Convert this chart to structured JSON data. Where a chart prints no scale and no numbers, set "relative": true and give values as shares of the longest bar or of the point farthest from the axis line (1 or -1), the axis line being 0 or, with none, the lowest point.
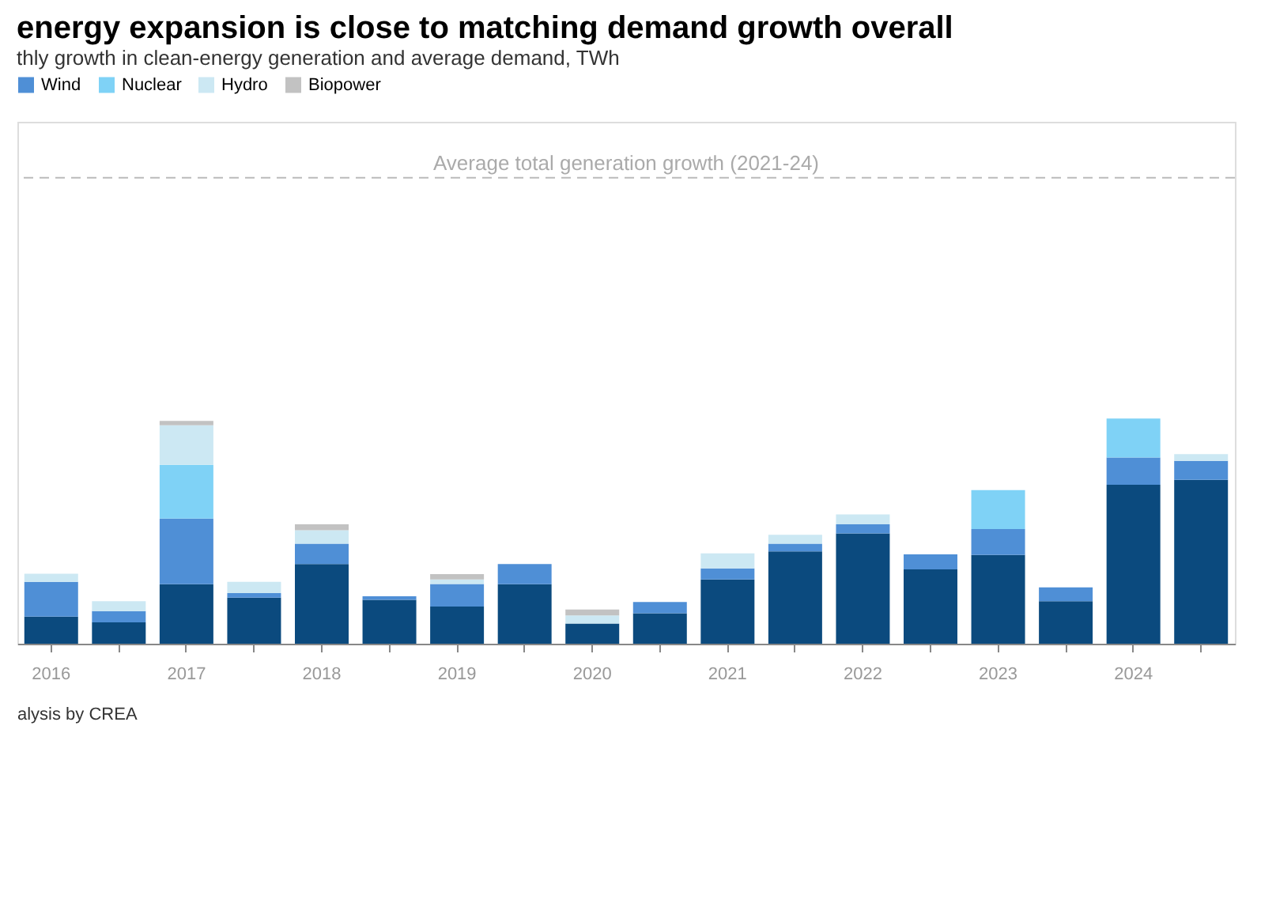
{
  "chart_data": {
    "type": "bar",
    "stacked": true,
    "relative": true,
    "title": "energy expansion is close to matching demand growth overall",
    "subtitle": "thly growth in clean-energy generation and average demand, TWh",
    "categories": [
      "2016",
      null,
      "2017",
      null,
      "2018",
      null,
      "2019",
      null,
      "2020",
      null,
      "2021",
      null,
      "2022",
      null,
      "2023",
      null,
      "2024",
      null
    ],
    "series": [
      {
        "color": "#0b4a7e",
        "values": [
          0.12,
          0.095,
          0.264,
          0.205,
          0.354,
          0.195,
          0.165,
          0.264,
          0.09,
          0.135,
          0.285,
          0.41,
          0.49,
          0.33,
          0.394,
          0.189,
          0.706,
          0.728
        ]
      },
      {
        "name": "Wind",
        "color": "#4f8fd6",
        "values": [
          0.155,
          0.05,
          0.292,
          0.02,
          0.09,
          0.016,
          0.1,
          0.09,
          null,
          0.05,
          0.05,
          0.034,
          0.04,
          0.067,
          0.115,
          0.061,
          0.121,
          0.084
        ]
      },
      {
        "name": "Nuclear",
        "color": "#7fd2f6",
        "values": [
          null,
          null,
          0.239,
          null,
          null,
          null,
          null,
          null,
          null,
          null,
          null,
          null,
          null,
          null,
          0.173,
          null,
          0.173,
          null
        ]
      },
      {
        "name": "Hydro",
        "color": "#cce8f3",
        "values": [
          0.036,
          0.044,
          0.175,
          0.05,
          0.06,
          null,
          0.02,
          null,
          0.036,
          null,
          0.066,
          0.04,
          0.044,
          null,
          null,
          null,
          null,
          0.03
        ]
      },
      {
        "name": "Biopower",
        "color": "#c2c2c2",
        "values": [
          null,
          null,
          0.02,
          null,
          0.026,
          null,
          0.024,
          null,
          0.026,
          null,
          null,
          null,
          null,
          null,
          null,
          null,
          null,
          null
        ]
      }
    ],
    "ref_lines": [
      {
        "axis": "y",
        "value": 2.07,
        "label": "Average total generation growth (2021-24)",
        "color": "#bbbbbb",
        "line_style": "dashed"
      }
    ],
    "legend": "top left",
    "annotations": [
      "alysis by CREA"
    ]
  }
}
